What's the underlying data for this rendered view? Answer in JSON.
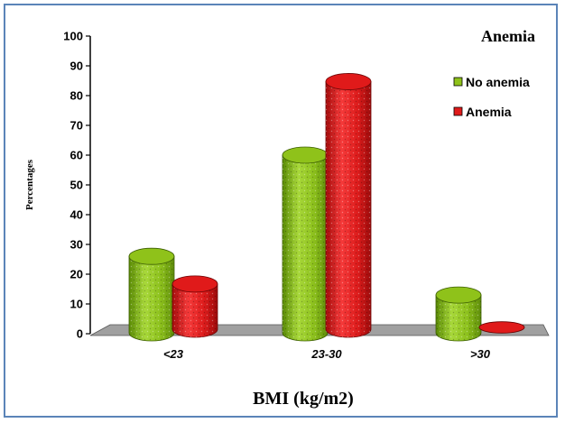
{
  "colors": {
    "no_anemia": "#8fc21a",
    "anemia": "#e01a1a",
    "frame": "#5b84b8",
    "floor": "#a0a0a0"
  },
  "chart_data": {
    "type": "bar",
    "title": "Anemia",
    "xlabel": "BMI (kg/m2)",
    "ylabel": "Percentages",
    "categories": [
      "<23",
      "23-30",
      ">30"
    ],
    "series": [
      {
        "name": "No anemia",
        "values": [
          26,
          60,
          13
        ]
      },
      {
        "name": "Anemia",
        "values": [
          15.5,
          83.5,
          0
        ]
      }
    ],
    "ylim": [
      0,
      100
    ],
    "yticks": [
      "0",
      "10",
      "20",
      "30",
      "40",
      "50",
      "60",
      "70",
      "80",
      "90",
      "100"
    ],
    "grid": false,
    "legend": "top-right",
    "style": "3d-cylinder"
  }
}
